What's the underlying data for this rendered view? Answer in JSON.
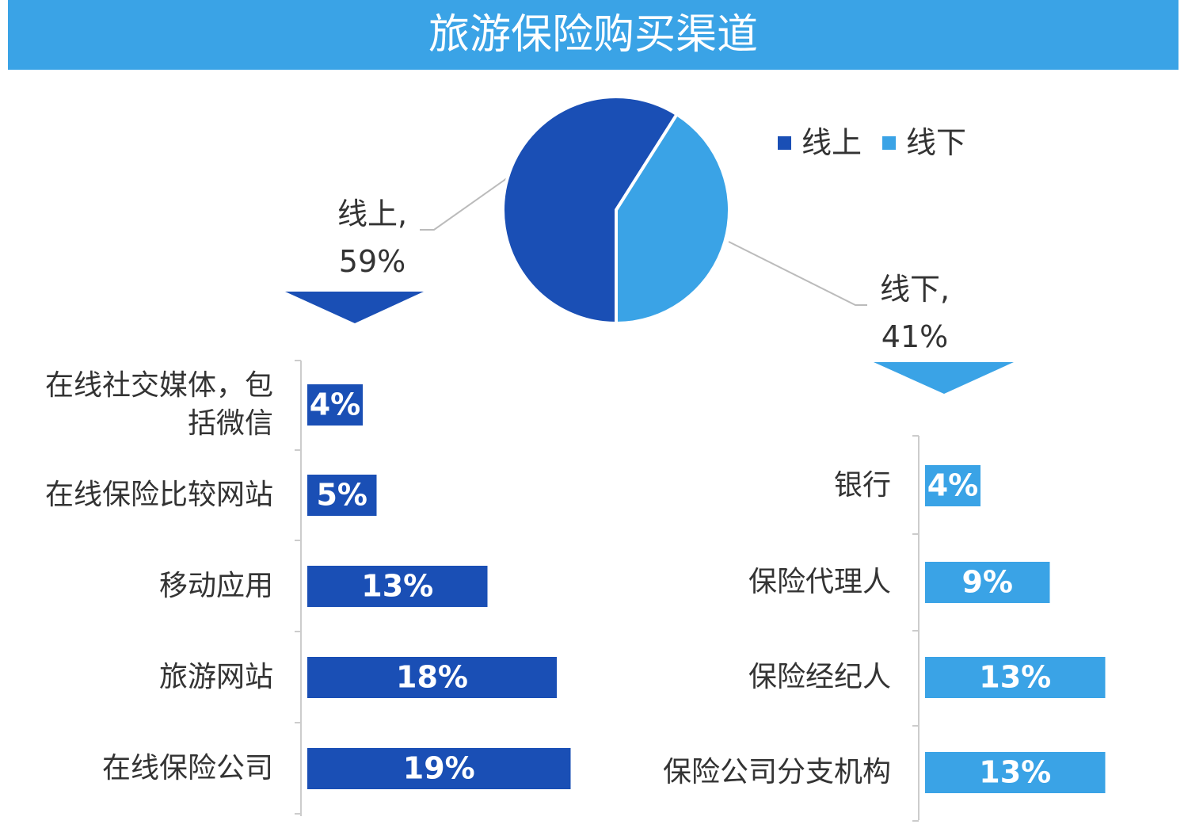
{
  "title": "旅游保险购买渠道",
  "chart_data": [
    {
      "type": "pie",
      "categories": [
        "线上",
        "线下"
      ],
      "values": [
        59,
        41
      ],
      "value_labels": [
        "线上,\n59%",
        "线下,\n41%"
      ],
      "colors": [
        "#1a4fb5",
        "#3aa3e6"
      ],
      "legend": "top-right"
    },
    {
      "type": "hbar",
      "categories": [
        "在线社交媒体，包括微信",
        "在线保险比较网站",
        "移动应用",
        "旅游网站",
        "在线保险公司"
      ],
      "values": [
        4,
        5,
        13,
        18,
        19
      ],
      "value_labels": [
        "4%",
        "5%",
        "13%",
        "18%",
        "19%"
      ],
      "color": "#1a4fb5"
    },
    {
      "type": "hbar",
      "categories": [
        "银行",
        "保险代理人",
        "保险经纪人",
        "保险公司分支机构"
      ],
      "values": [
        4,
        9,
        13,
        13
      ],
      "value_labels": [
        "4%",
        "9%",
        "13%",
        "13%"
      ],
      "color": "#3aa3e6"
    }
  ]
}
